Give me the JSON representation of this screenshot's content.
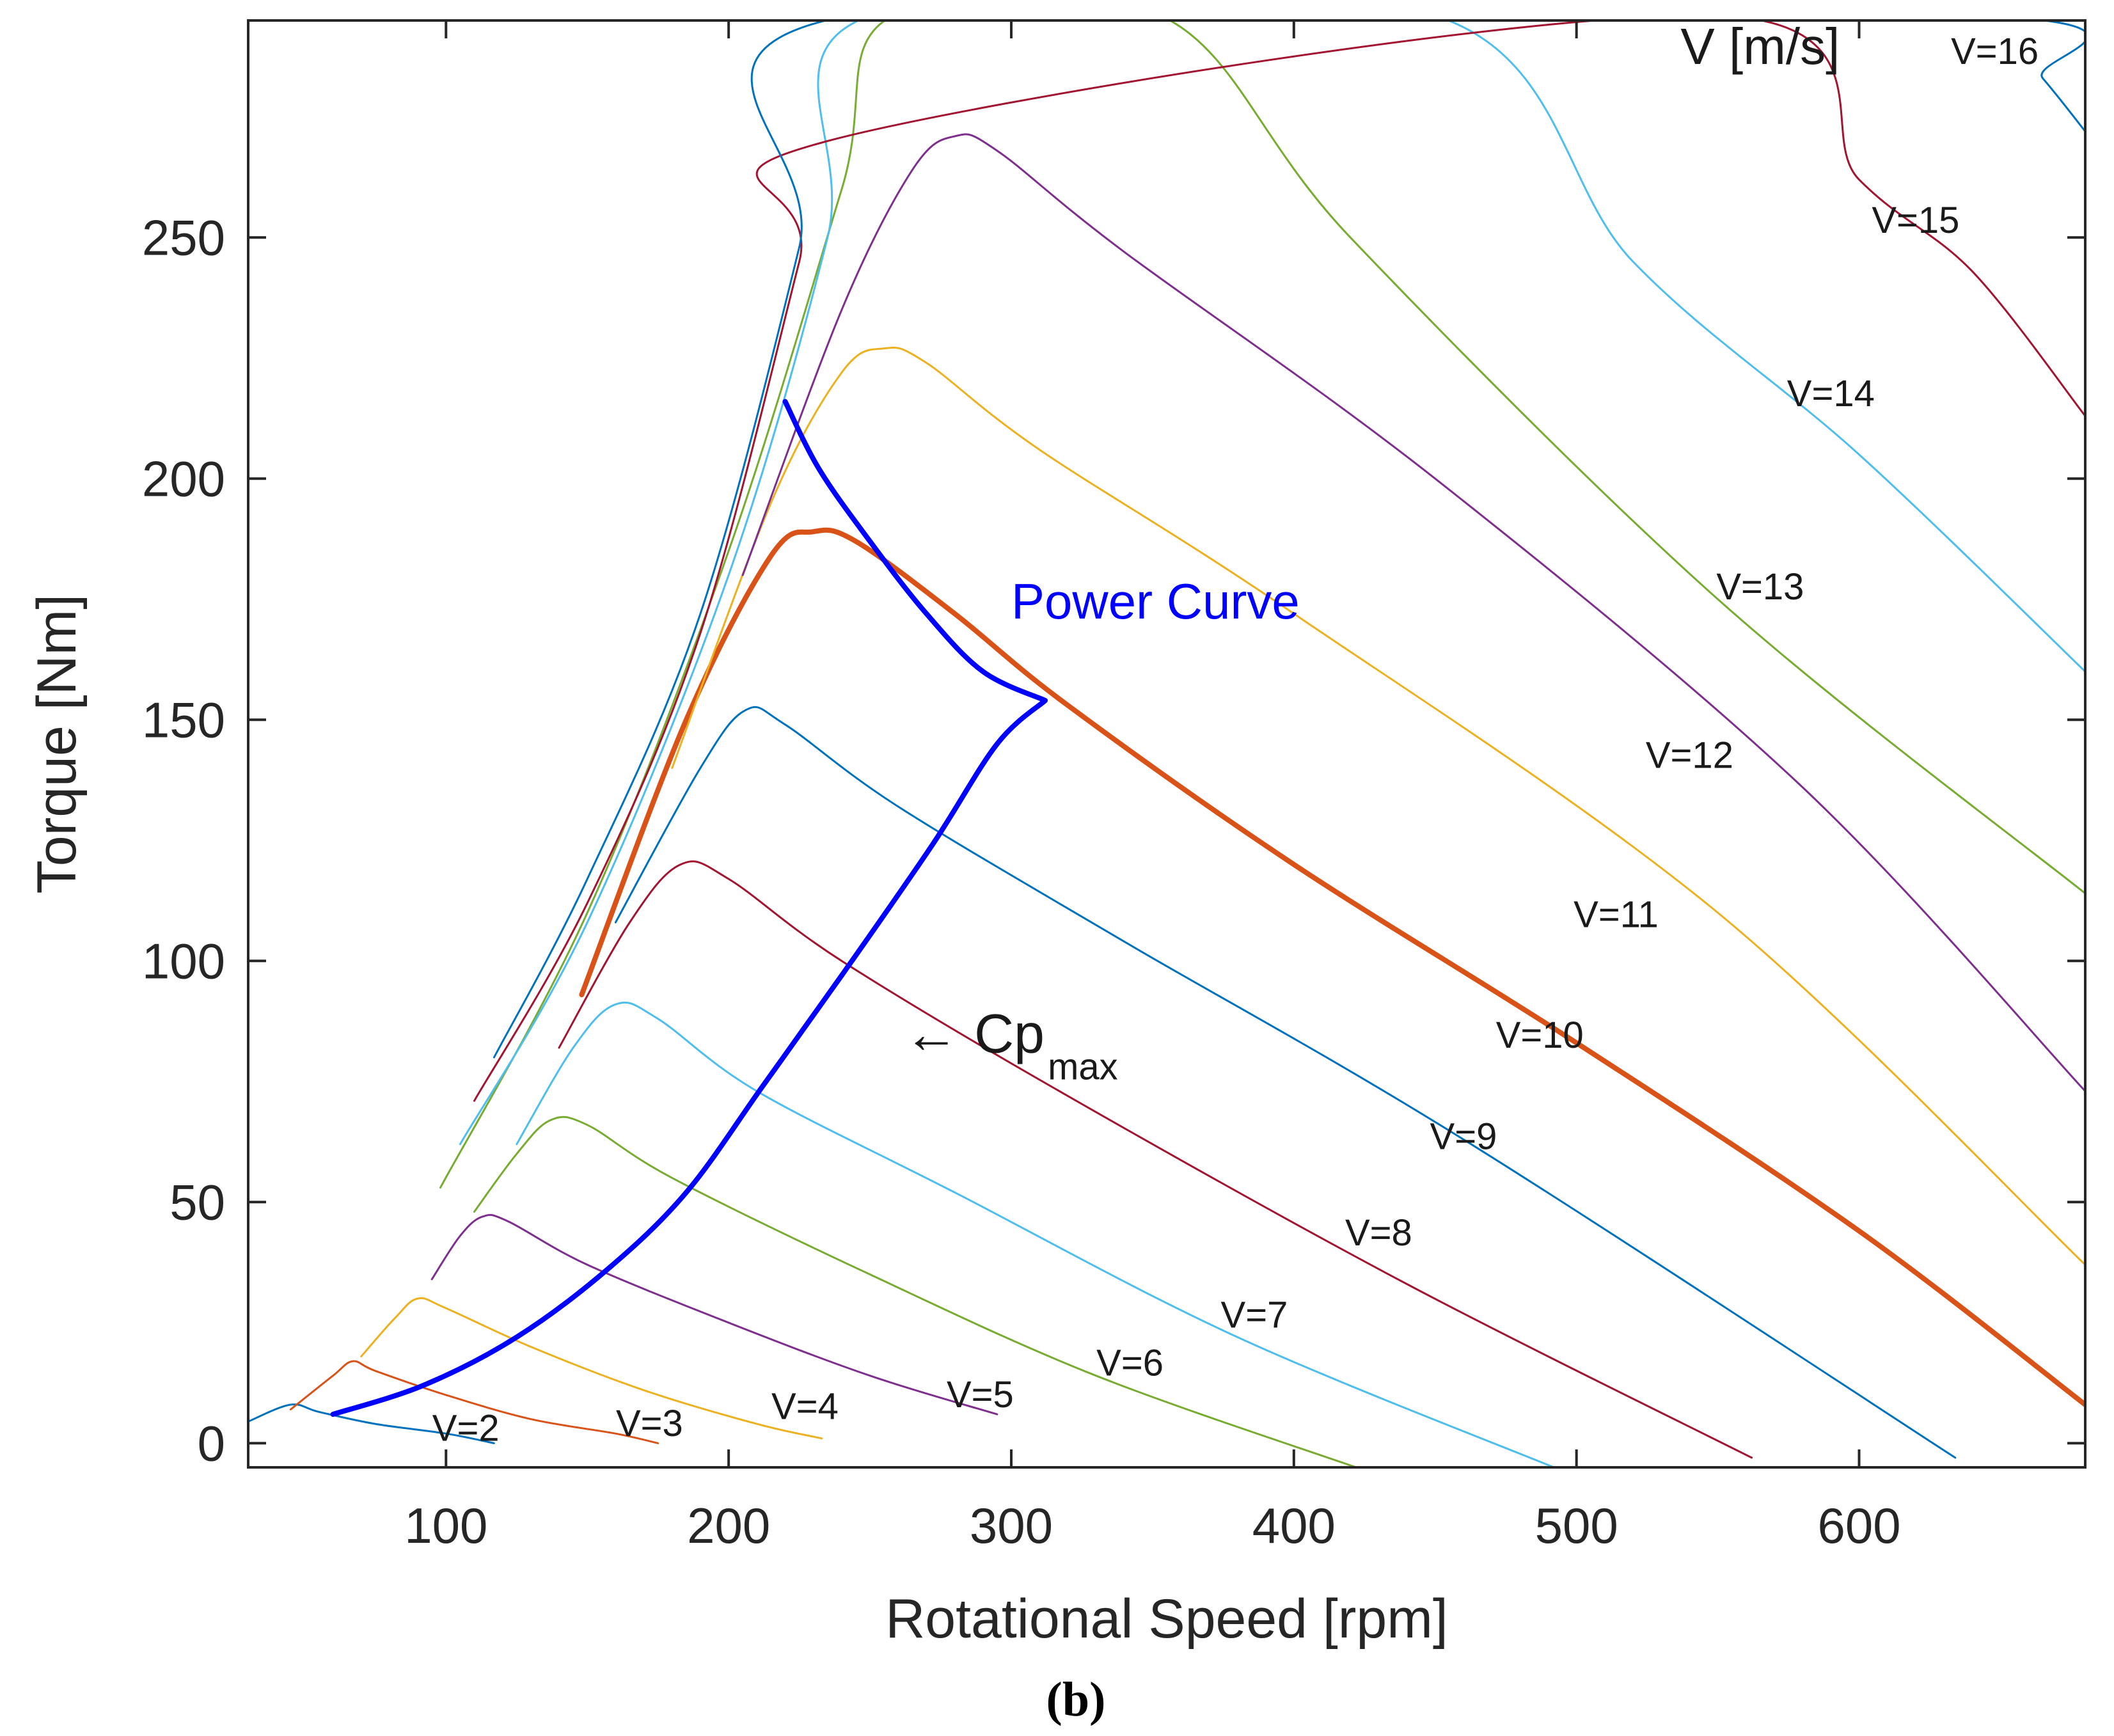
{
  "caption": "(b)",
  "chart_data": {
    "type": "line",
    "xlabel": "Rotational Speed [rpm]",
    "ylabel": "Torque [Nm]",
    "xlim": [
      30,
      680
    ],
    "ylim": [
      -5,
      295
    ],
    "xticks": [
      100,
      200,
      300,
      400,
      500,
      600
    ],
    "yticks": [
      0,
      50,
      100,
      150,
      200,
      250
    ],
    "legend_title": "V [m/s]",
    "series": [
      {
        "name": "V=2",
        "label": "V=2",
        "color": "#0072bd",
        "points": [
          [
            30,
            4.5
          ],
          [
            45,
            8
          ],
          [
            55,
            6.5
          ],
          [
            75,
            4
          ],
          [
            100,
            2
          ],
          [
            117,
            0
          ]
        ]
      },
      {
        "name": "V=3",
        "label": "V=3",
        "color": "#d95319",
        "points": [
          [
            45,
            7
          ],
          [
            60,
            14
          ],
          [
            67,
            17
          ],
          [
            75,
            15
          ],
          [
            100,
            10
          ],
          [
            130,
            5
          ],
          [
            160,
            2
          ],
          [
            175,
            0
          ]
        ]
      },
      {
        "name": "V=4",
        "label": "V=4",
        "color": "#edb120",
        "points": [
          [
            70,
            18
          ],
          [
            82,
            26
          ],
          [
            90,
            30
          ],
          [
            100,
            28
          ],
          [
            130,
            20
          ],
          [
            170,
            11
          ],
          [
            210,
            4
          ],
          [
            233,
            1
          ]
        ]
      },
      {
        "name": "V=5",
        "label": "V=5",
        "color": "#7e2f8e",
        "points": [
          [
            95,
            34
          ],
          [
            105,
            43
          ],
          [
            113,
            47
          ],
          [
            122,
            46
          ],
          [
            150,
            37
          ],
          [
            200,
            25
          ],
          [
            250,
            14
          ],
          [
            295,
            6
          ]
        ]
      },
      {
        "name": "V=6",
        "label": "V=6",
        "color": "#77ac30",
        "points": [
          [
            110,
            48
          ],
          [
            125,
            60
          ],
          [
            137,
            67
          ],
          [
            150,
            66
          ],
          [
            180,
            55
          ],
          [
            250,
            35
          ],
          [
            330,
            14
          ],
          [
            422,
            -5
          ]
        ]
      },
      {
        "name": "V=7",
        "label": "V=7",
        "color": "#4dbeee",
        "points": [
          [
            125,
            62
          ],
          [
            145,
            82
          ],
          [
            160,
            91
          ],
          [
            175,
            88
          ],
          [
            210,
            73
          ],
          [
            280,
            52
          ],
          [
            380,
            22
          ],
          [
            492,
            -5
          ]
        ]
      },
      {
        "name": "V=8",
        "label": "V=8",
        "color": "#a2142f",
        "points": [
          [
            140,
            82
          ],
          [
            165,
            108
          ],
          [
            183,
            120
          ],
          [
            200,
            117
          ],
          [
            240,
            100
          ],
          [
            320,
            72
          ],
          [
            440,
            33
          ],
          [
            562,
            -3
          ]
        ]
      },
      {
        "name": "V=9",
        "label": "V=9",
        "color": "#0072bd",
        "points": [
          [
            160,
            108
          ],
          [
            190,
            140
          ],
          [
            206,
            152
          ],
          [
            220,
            149
          ],
          [
            260,
            132
          ],
          [
            340,
            104
          ],
          [
            460,
            63
          ],
          [
            634,
            -3
          ]
        ]
      },
      {
        "name": "V=10",
        "label": "V=10",
        "color": "#d95319",
        "width": 8,
        "points": [
          [
            148,
            93
          ],
          [
            185,
            150
          ],
          [
            215,
            184
          ],
          [
            230,
            189
          ],
          [
            245,
            187
          ],
          [
            280,
            172
          ],
          [
            320,
            153
          ],
          [
            400,
            120
          ],
          [
            500,
            83
          ],
          [
            600,
            44
          ],
          [
            680,
            8
          ]
        ]
      },
      {
        "name": "V=11",
        "label": "V=11",
        "color": "#edb120",
        "points": [
          [
            180,
            140
          ],
          [
            215,
            195
          ],
          [
            240,
            222
          ],
          [
            255,
            227
          ],
          [
            270,
            224
          ],
          [
            310,
            206
          ],
          [
            400,
            172
          ],
          [
            550,
            110
          ],
          [
            680,
            37
          ]
        ]
      },
      {
        "name": "V=12",
        "label": "V=12",
        "color": "#7e2f8e",
        "points": [
          [
            205,
            180
          ],
          [
            240,
            235
          ],
          [
            265,
            264
          ],
          [
            280,
            271
          ],
          [
            295,
            268
          ],
          [
            340,
            247
          ],
          [
            450,
            200
          ],
          [
            580,
            136
          ],
          [
            680,
            73
          ]
        ]
      },
      {
        "name": "V=13",
        "label": "V=13",
        "color": "#77ac30",
        "points": [
          [
            98,
            53
          ],
          [
            150,
            110
          ],
          [
            200,
            185
          ],
          [
            240,
            260
          ],
          [
            258,
            296
          ],
          [
            353,
            296
          ],
          [
            420,
            250
          ],
          [
            550,
            175
          ],
          [
            680,
            114
          ]
        ]
      },
      {
        "name": "V=14",
        "label": "V=14",
        "color": "#4dbeee",
        "points": [
          [
            105,
            62
          ],
          [
            150,
            108
          ],
          [
            200,
            180
          ],
          [
            235,
            250
          ],
          [
            250,
            296
          ],
          [
            450,
            296
          ],
          [
            520,
            245
          ],
          [
            600,
            205
          ],
          [
            680,
            160
          ]
        ]
      },
      {
        "name": "V=15",
        "label": "V=15",
        "color": "#a2142f",
        "points": [
          [
            110,
            71
          ],
          [
            150,
            112
          ],
          [
            190,
            168
          ],
          [
            225,
            245
          ],
          [
            235,
            270
          ],
          [
            550,
            296
          ],
          [
            600,
            262
          ],
          [
            640,
            243
          ],
          [
            680,
            213
          ]
        ]
      },
      {
        "name": "V=16",
        "label": "V=16",
        "color": "#0072bd",
        "points": [
          [
            117,
            80
          ],
          [
            150,
            117
          ],
          [
            190,
            172
          ],
          [
            225,
            248
          ],
          [
            242,
            296
          ],
          [
            645,
            296
          ],
          [
            665,
            283
          ],
          [
            680,
            272
          ]
        ]
      },
      {
        "name": "Power Curve",
        "label": "Power Curve",
        "color": "#0000ff",
        "width": 8,
        "points": [
          [
            220,
            216
          ],
          [
            232,
            202
          ],
          [
            250,
            187
          ],
          [
            270,
            172
          ],
          [
            290,
            160
          ],
          [
            312,
            154
          ]
        ]
      },
      {
        "name": "Cp max",
        "label": "Cp",
        "sub": "max",
        "color": "#0000ff",
        "width": 8,
        "points": [
          [
            60,
            6
          ],
          [
            92,
            12
          ],
          [
            125,
            22
          ],
          [
            157,
            36
          ],
          [
            185,
            52
          ],
          [
            212,
            74
          ],
          [
            240,
            97
          ],
          [
            272,
            124
          ],
          [
            295,
            145
          ],
          [
            312,
            154
          ]
        ]
      }
    ],
    "curve_labels": [
      {
        "text": "V=2",
        "x": 107,
        "y": 0.5
      },
      {
        "text": "V=3",
        "x": 172,
        "y": 1.5
      },
      {
        "text": "V=4",
        "x": 227,
        "y": 5
      },
      {
        "text": "V=5",
        "x": 289,
        "y": 7.5
      },
      {
        "text": "V=6",
        "x": 342,
        "y": 14
      },
      {
        "text": "V=7",
        "x": 386,
        "y": 24
      },
      {
        "text": "V=8",
        "x": 430,
        "y": 41
      },
      {
        "text": "V=9",
        "x": 460,
        "y": 61
      },
      {
        "text": "V=10",
        "x": 487,
        "y": 82
      },
      {
        "text": "V=11",
        "x": 514,
        "y": 107
      },
      {
        "text": "V=12",
        "x": 540,
        "y": 140
      },
      {
        "text": "V=13",
        "x": 565,
        "y": 175
      },
      {
        "text": "V=14",
        "x": 590,
        "y": 215
      },
      {
        "text": "V=15",
        "x": 620,
        "y": 251
      },
      {
        "text": "V=16",
        "x": 648,
        "y": 286
      }
    ],
    "legend_pos": {
      "x": 565,
      "y": 286
    },
    "power_label": {
      "text": "Power Curve",
      "x": 300,
      "y": 171
    },
    "cp_label": {
      "arrow": "←",
      "text": "Cp",
      "sub": "max",
      "x": 262,
      "y": 81
    }
  }
}
